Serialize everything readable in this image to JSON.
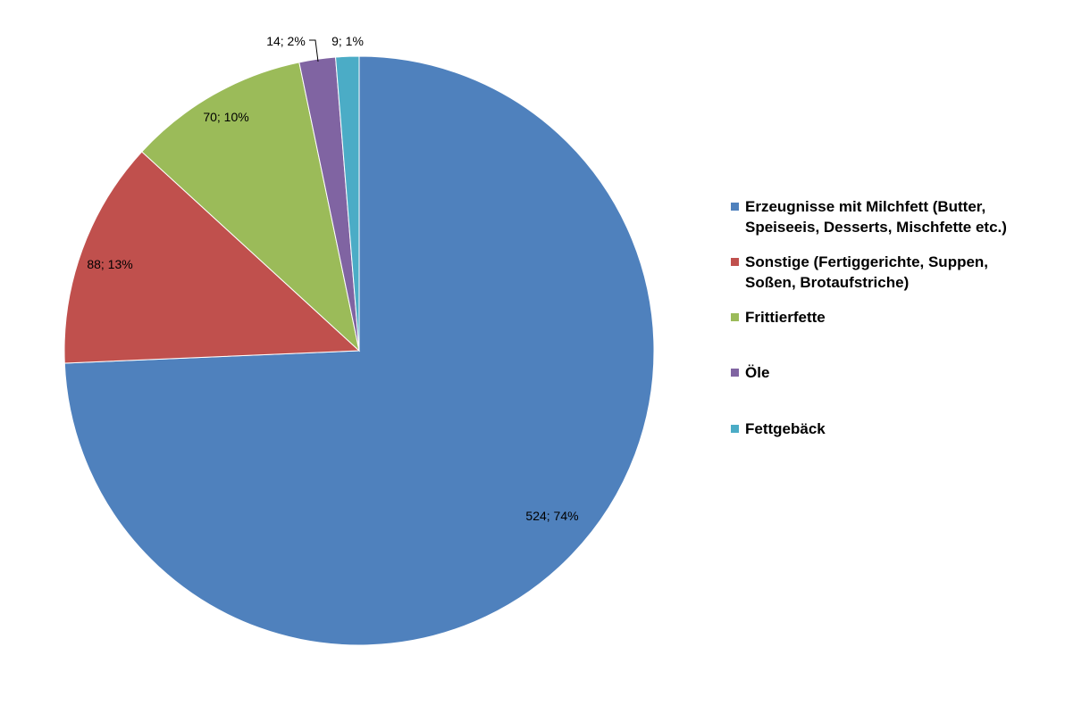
{
  "chart_data": {
    "type": "pie",
    "title": "",
    "slices": [
      {
        "label": "Erzeugnisse mit Milchfett (Butter, Speiseeis, Desserts, Mischfette etc.)",
        "legend_lines": [
          "Erzeugnisse mit Milchfett (Butter,",
          "Speiseeis, Desserts, Mischfette etc.)"
        ],
        "value": 524,
        "percent": 74,
        "data_label": "524; 74%",
        "color": "#4F81BD"
      },
      {
        "label": "Sonstige (Fertiggerichte, Suppen, Soßen, Brotaufstriche)",
        "legend_lines": [
          "Sonstige (Fertiggerichte, Suppen,",
          "Soßen, Brotaufstriche)"
        ],
        "value": 88,
        "percent": 13,
        "data_label": "88; 13%",
        "color": "#C0504D"
      },
      {
        "label": "Frittierfette",
        "legend_lines": [
          "Frittierfette"
        ],
        "value": 70,
        "percent": 10,
        "data_label": "70; 10%",
        "color": "#9BBB59"
      },
      {
        "label": "Öle",
        "legend_lines": [
          "Öle"
        ],
        "value": 14,
        "percent": 2,
        "data_label": "14; 2%",
        "color": "#8064A2"
      },
      {
        "label": "Fettgebäck",
        "legend_lines": [
          "Fettgebäck"
        ],
        "value": 9,
        "percent": 1,
        "data_label": "9; 1%",
        "color": "#4BACC6"
      }
    ],
    "legend_position": "right",
    "start_angle": "12 o'clock",
    "direction": "clockwise"
  }
}
